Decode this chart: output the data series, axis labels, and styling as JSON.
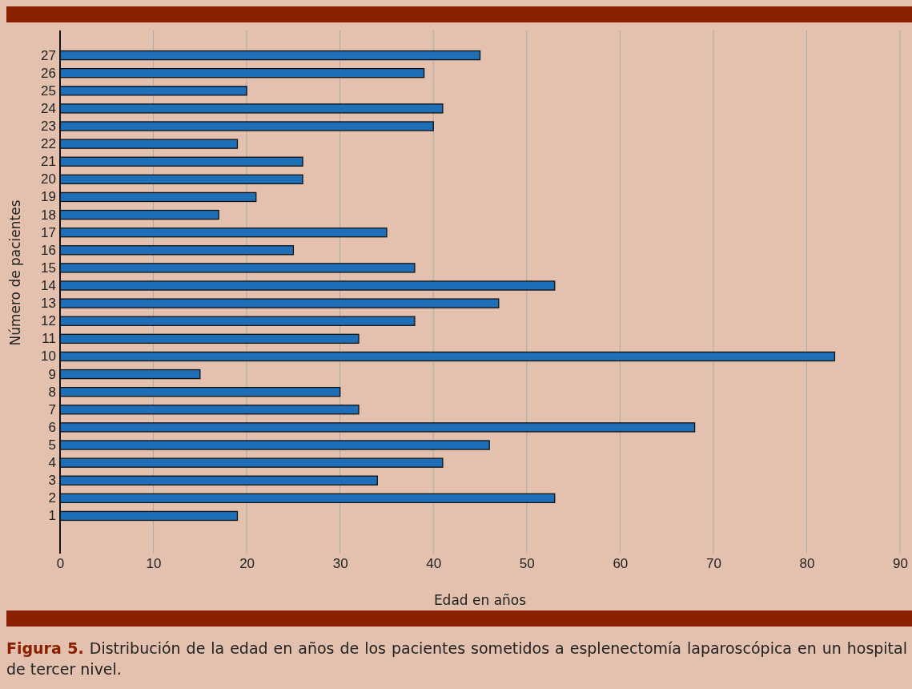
{
  "chart_data": {
    "type": "bar",
    "orientation": "horizontal",
    "title": "Figura 5.",
    "annotations": [
      "Distribución de la edad en años de los pacientes sometidos a esplenectomía laparoscópica en un hospital de tercer nivel."
    ],
    "xlabel": "Edad en años",
    "ylabel": "Número de pacientes",
    "categories": [
      "27",
      "26",
      "25",
      "24",
      "23",
      "22",
      "21",
      "20",
      "19",
      "18",
      "17",
      "16",
      "15",
      "14",
      "13",
      "12",
      "11",
      "10",
      "9",
      "8",
      "7",
      "6",
      "5",
      "4",
      "3",
      "2",
      "1"
    ],
    "values": [
      45,
      39,
      20,
      41,
      40,
      19,
      26,
      26,
      21,
      17,
      35,
      25,
      38,
      53,
      47,
      38,
      32,
      83,
      15,
      30,
      32,
      68,
      46,
      41,
      34,
      53,
      19
    ],
    "color": "#1f6fb8",
    "xlim": [
      0,
      90
    ],
    "xticks": [
      0,
      10,
      20,
      30,
      40,
      50,
      60,
      70,
      80,
      90
    ],
    "grid": "x"
  }
}
